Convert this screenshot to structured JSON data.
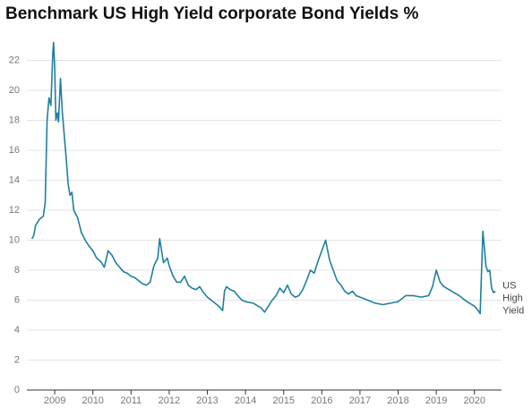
{
  "chart_data": {
    "type": "line",
    "title": "Benchmark US High Yield corporate Bond Yields %",
    "x": [
      2008.4,
      2008.45,
      2008.5,
      2008.6,
      2008.7,
      2008.75,
      2008.8,
      2008.85,
      2008.9,
      2008.95,
      2008.97,
      2009.0,
      2009.03,
      2009.07,
      2009.1,
      2009.15,
      2009.2,
      2009.25,
      2009.3,
      2009.35,
      2009.4,
      2009.45,
      2009.5,
      2009.6,
      2009.7,
      2009.8,
      2009.9,
      2010.0,
      2010.1,
      2010.2,
      2010.3,
      2010.4,
      2010.5,
      2010.6,
      2010.7,
      2010.8,
      2010.9,
      2011.0,
      2011.1,
      2011.2,
      2011.3,
      2011.4,
      2011.5,
      2011.6,
      2011.7,
      2011.75,
      2011.85,
      2011.95,
      2012.0,
      2012.1,
      2012.2,
      2012.3,
      2012.4,
      2012.5,
      2012.6,
      2012.7,
      2012.8,
      2012.9,
      2013.0,
      2013.1,
      2013.2,
      2013.3,
      2013.4,
      2013.45,
      2013.5,
      2013.6,
      2013.7,
      2013.8,
      2013.9,
      2014.0,
      2014.2,
      2014.4,
      2014.5,
      2014.6,
      2014.7,
      2014.8,
      2014.9,
      2015.0,
      2015.1,
      2015.2,
      2015.3,
      2015.4,
      2015.5,
      2015.6,
      2015.7,
      2015.8,
      2015.9,
      2016.0,
      2016.1,
      2016.2,
      2016.3,
      2016.4,
      2016.5,
      2016.6,
      2016.7,
      2016.8,
      2016.9,
      2017.0,
      2017.2,
      2017.4,
      2017.6,
      2017.8,
      2018.0,
      2018.2,
      2018.4,
      2018.6,
      2018.8,
      2018.9,
      2019.0,
      2019.1,
      2019.2,
      2019.4,
      2019.6,
      2019.8,
      2020.0,
      2020.1,
      2020.15,
      2020.2,
      2020.22,
      2020.26,
      2020.3,
      2020.35,
      2020.4,
      2020.45,
      2020.5,
      2020.55
    ],
    "series": [
      {
        "name": "US High Yield",
        "color": "#1f7fa0",
        "values": [
          10.1,
          10.3,
          11.0,
          11.4,
          11.6,
          12.5,
          18,
          19.5,
          19,
          22.5,
          23.2,
          21.5,
          18.0,
          18.5,
          17.9,
          20.8,
          18.5,
          17.0,
          15.5,
          13.8,
          13.0,
          13.2,
          12.0,
          11.5,
          10.5,
          10.0,
          9.6,
          9.3,
          8.8,
          8.6,
          8.2,
          9.3,
          9.0,
          8.5,
          8.2,
          7.9,
          7.8,
          7.6,
          7.5,
          7.3,
          7.1,
          7.0,
          7.2,
          8.3,
          8.8,
          10.1,
          8.5,
          8.8,
          8.3,
          7.6,
          7.2,
          7.2,
          7.6,
          7.0,
          6.8,
          6.7,
          6.9,
          6.5,
          6.2,
          6.0,
          5.8,
          5.6,
          5.3,
          6.6,
          6.9,
          6.7,
          6.6,
          6.3,
          6.0,
          5.9,
          5.8,
          5.5,
          5.2,
          5.6,
          6.0,
          6.3,
          6.8,
          6.5,
          7.0,
          6.4,
          6.2,
          6.3,
          6.7,
          7.3,
          8.0,
          7.8,
          8.6,
          9.3,
          10.0,
          8.7,
          8.0,
          7.3,
          7.0,
          6.6,
          6.4,
          6.6,
          6.3,
          6.2,
          6.0,
          5.8,
          5.7,
          5.8,
          5.9,
          6.3,
          6.3,
          6.2,
          6.3,
          6.9,
          8.0,
          7.2,
          6.9,
          6.6,
          6.3,
          5.9,
          5.6,
          5.3,
          5.1,
          9.0,
          10.6,
          9.5,
          8.3,
          7.9,
          8.0,
          6.8,
          6.5,
          6.6
        ]
      }
    ],
    "xlim": [
      2008.27,
      2020.71
    ],
    "xticks": [
      2009,
      2010,
      2011,
      2012,
      2013,
      2014,
      2015,
      2016,
      2017,
      2018,
      2019,
      2020
    ],
    "ylim": [
      0,
      24
    ],
    "yticks": [
      0,
      2,
      4,
      6,
      8,
      10,
      12,
      14,
      16,
      18,
      20,
      22
    ],
    "grid": true
  }
}
